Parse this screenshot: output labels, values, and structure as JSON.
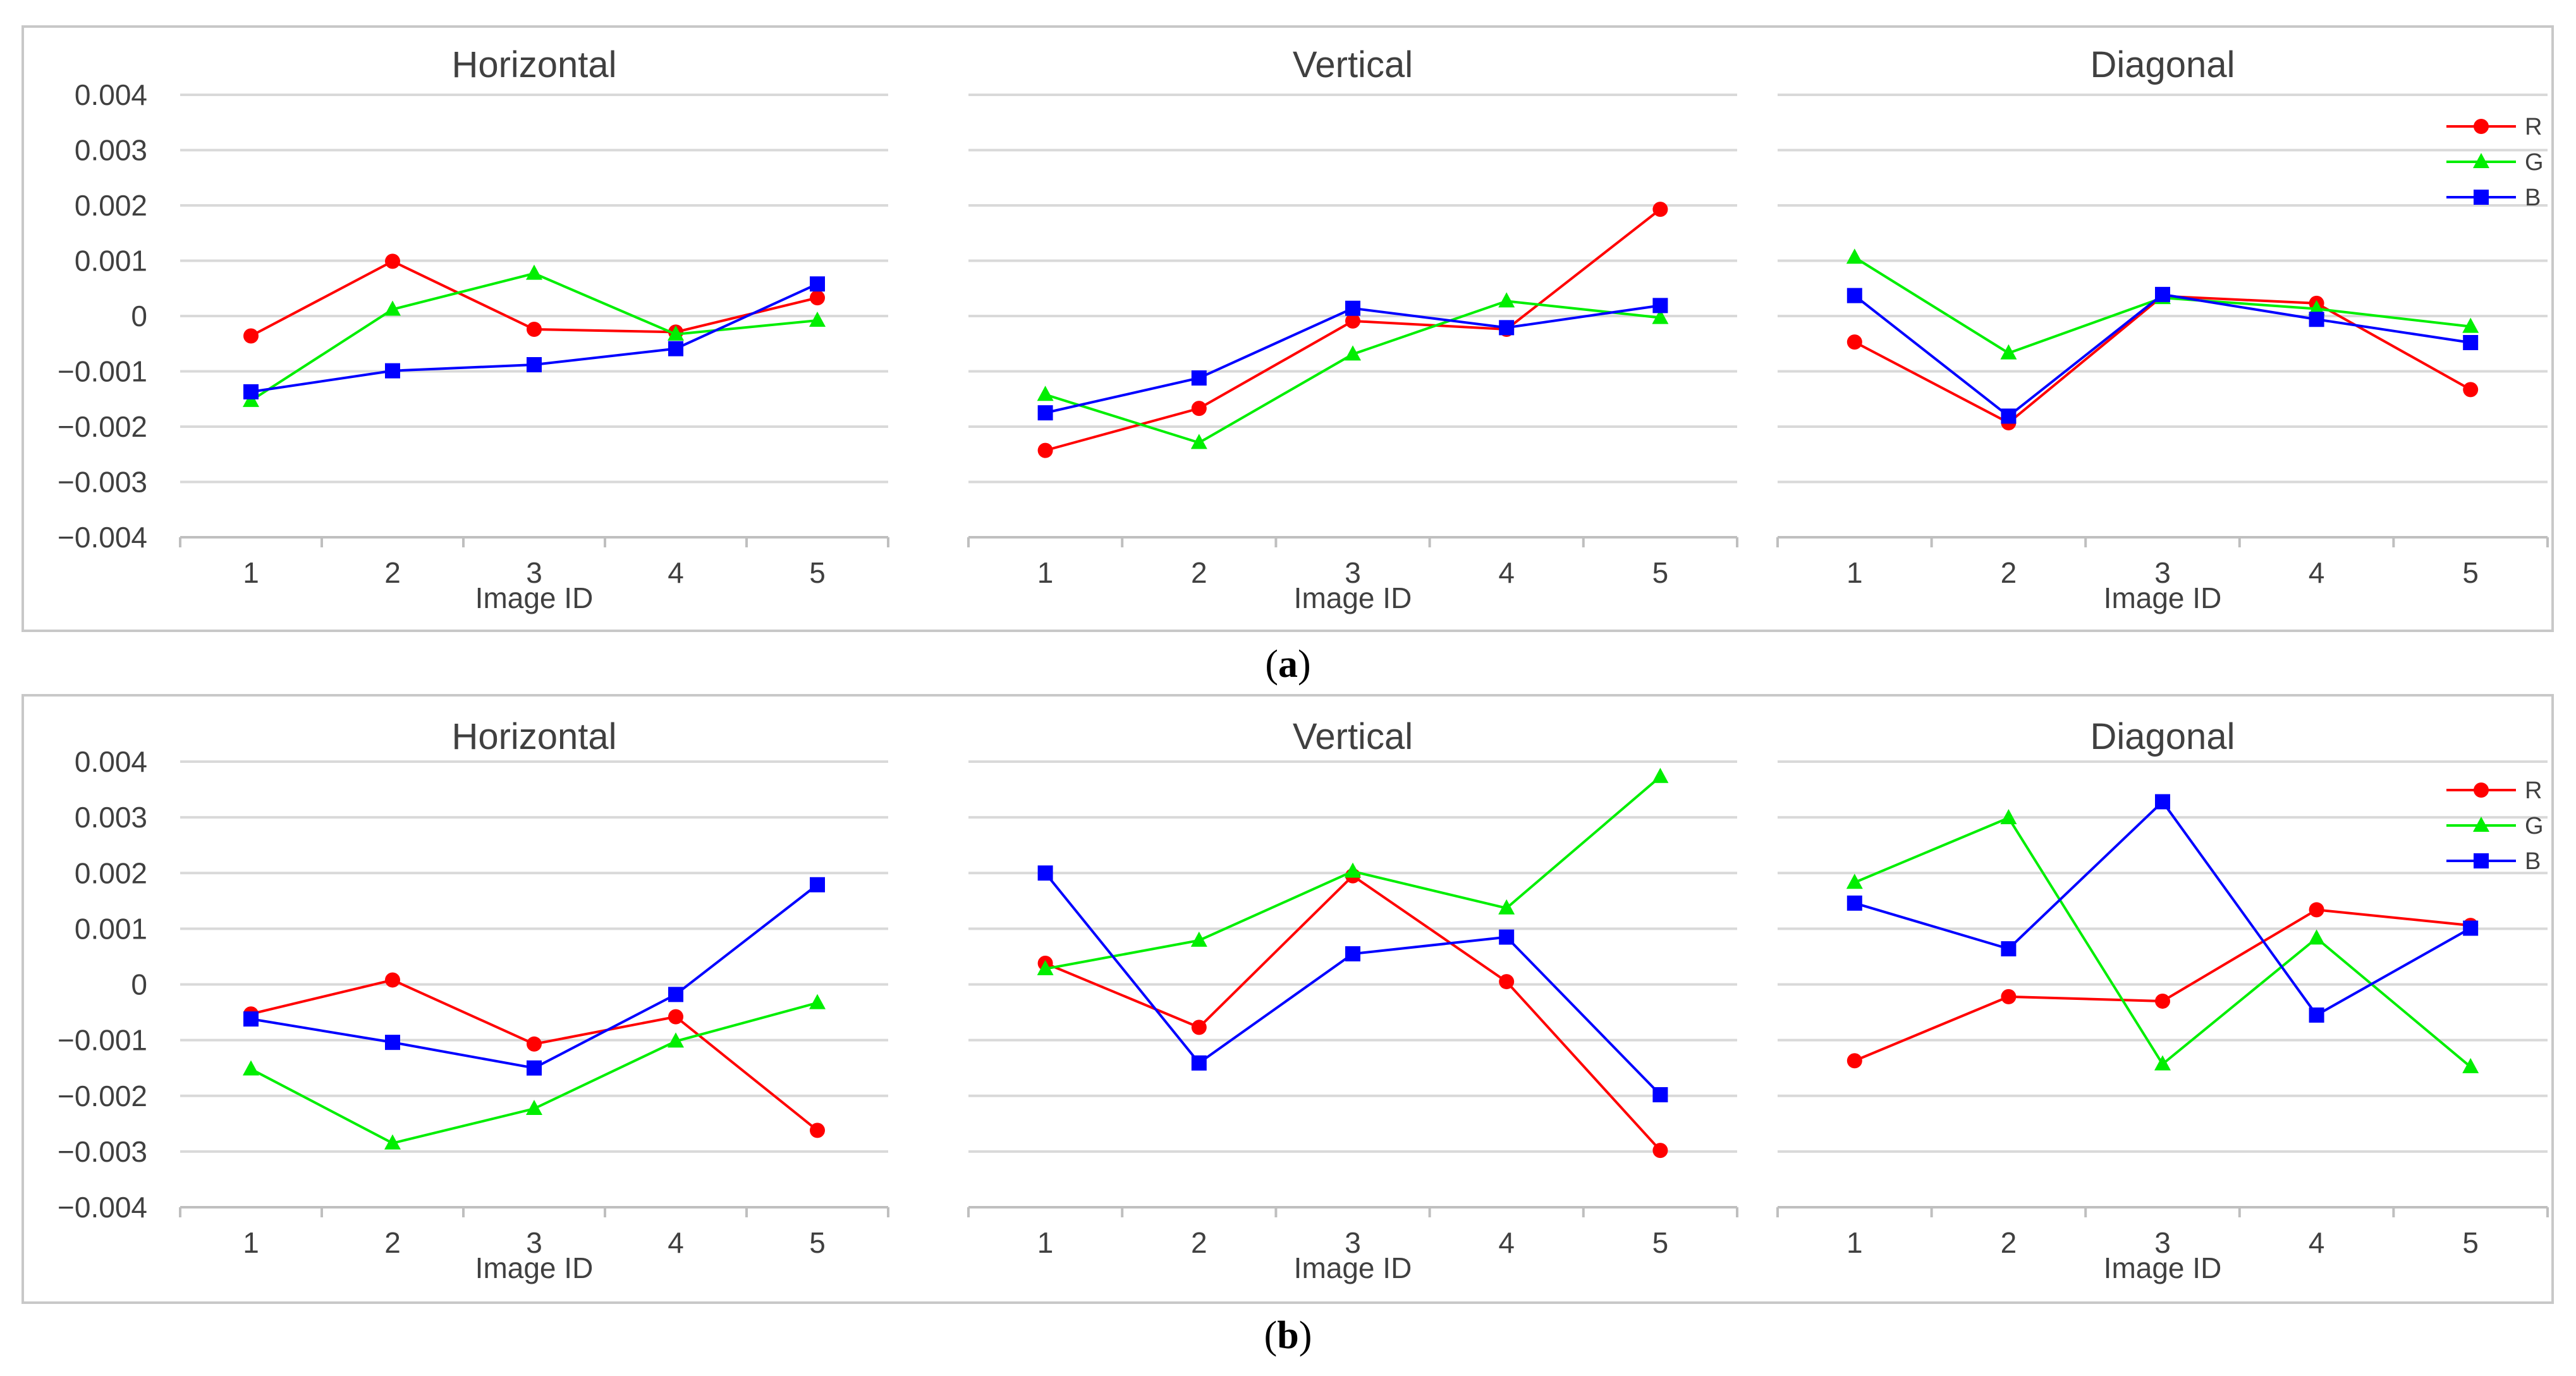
{
  "chart_data": [
    {
      "panel": "a",
      "type": "line",
      "title": "Horizontal",
      "xlabel": "Image ID",
      "ylabel": "",
      "categories": [
        "1",
        "2",
        "3",
        "4",
        "5"
      ],
      "ylim": [
        -0.004,
        0.004
      ],
      "yticks": [
        "0.004",
        "0.003",
        "0.002",
        "0.001",
        "0",
        "−0.001",
        "−0.002",
        "−0.003",
        "−0.004"
      ],
      "grid": true,
      "series": [
        {
          "name": "R",
          "values": [
            -0.00036,
            0.00099,
            -0.00024,
            -0.00029,
            0.00033
          ]
        },
        {
          "name": "G",
          "values": [
            -0.00153,
            0.00012,
            0.00077,
            -0.00033,
            -8e-05
          ]
        },
        {
          "name": "B",
          "values": [
            -0.00137,
            -0.00099,
            -0.00088,
            -0.00059,
            0.00058
          ]
        }
      ]
    },
    {
      "panel": "a",
      "type": "line",
      "title": "Vertical",
      "xlabel": "Image ID",
      "ylabel": "",
      "categories": [
        "1",
        "2",
        "3",
        "4",
        "5"
      ],
      "ylim": [
        -0.004,
        0.004
      ],
      "grid": true,
      "series": [
        {
          "name": "R",
          "values": [
            -0.00243,
            -0.00167,
            -9e-05,
            -0.00024,
            0.00193
          ]
        },
        {
          "name": "G",
          "values": [
            -0.00142,
            -0.00229,
            -0.00069,
            0.00027,
            -3e-05
          ]
        },
        {
          "name": "B",
          "values": [
            -0.00175,
            -0.00112,
            0.00014,
            -0.00021,
            0.00019
          ]
        }
      ]
    },
    {
      "panel": "a",
      "type": "line",
      "title": "Diagonal",
      "xlabel": "Image ID",
      "ylabel": "",
      "categories": [
        "1",
        "2",
        "3",
        "4",
        "5"
      ],
      "ylim": [
        -0.004,
        0.004
      ],
      "grid": true,
      "legend": "top-right",
      "series": [
        {
          "name": "R",
          "values": [
            -0.00047,
            -0.00193,
            0.00036,
            0.00023,
            -0.00133
          ]
        },
        {
          "name": "G",
          "values": [
            0.00106,
            -0.00067,
            0.00033,
            0.00013,
            -0.00019
          ]
        },
        {
          "name": "B",
          "values": [
            0.00037,
            -0.00181,
            0.00039,
            -6e-05,
            -0.00048
          ]
        }
      ]
    },
    {
      "panel": "b",
      "type": "line",
      "title": "Horizontal",
      "xlabel": "Image ID",
      "ylabel": "",
      "categories": [
        "1",
        "2",
        "3",
        "4",
        "5"
      ],
      "ylim": [
        -0.004,
        0.004
      ],
      "yticks": [
        "0.004",
        "0.003",
        "0.002",
        "0.001",
        "0",
        "−0.001",
        "−0.002",
        "−0.003",
        "−0.004"
      ],
      "grid": true,
      "series": [
        {
          "name": "R",
          "values": [
            -0.00053,
            8e-05,
            -0.00107,
            -0.00058,
            -0.00262
          ]
        },
        {
          "name": "G",
          "values": [
            -0.00152,
            -0.00285,
            -0.00223,
            -0.00102,
            -0.00033
          ]
        },
        {
          "name": "B",
          "values": [
            -0.00062,
            -0.00104,
            -0.0015,
            -0.00018,
            0.00179
          ]
        }
      ]
    },
    {
      "panel": "b",
      "type": "line",
      "title": "Vertical",
      "xlabel": "Image ID",
      "ylabel": "",
      "categories": [
        "1",
        "2",
        "3",
        "4",
        "5"
      ],
      "ylim": [
        -0.004,
        0.004
      ],
      "grid": true,
      "series": [
        {
          "name": "R",
          "values": [
            0.00038,
            -0.00077,
            0.00195,
            5e-05,
            -0.00298
          ]
        },
        {
          "name": "G",
          "values": [
            0.00028,
            0.00079,
            0.00203,
            0.00137,
            0.00373
          ]
        },
        {
          "name": "B",
          "values": [
            0.002,
            -0.00141,
            0.00055,
            0.00085,
            -0.00198
          ]
        }
      ]
    },
    {
      "panel": "b",
      "type": "line",
      "title": "Diagonal",
      "xlabel": "Image ID",
      "ylabel": "",
      "categories": [
        "1",
        "2",
        "3",
        "4",
        "5"
      ],
      "ylim": [
        -0.004,
        0.004
      ],
      "grid": true,
      "legend": "top-right",
      "series": [
        {
          "name": "R",
          "values": [
            -0.00137,
            -0.00022,
            -0.0003,
            0.00134,
            0.00106
          ]
        },
        {
          "name": "G",
          "values": [
            0.00183,
            0.00299,
            -0.00143,
            0.00083,
            -0.00148
          ]
        },
        {
          "name": "B",
          "values": [
            0.00146,
            0.00064,
            0.00328,
            -0.00055,
            0.00101
          ]
        }
      ]
    }
  ],
  "colors": {
    "R": "#ff0000",
    "G": "#00ee00",
    "B": "#0000ff",
    "grid": "#d9d9d9",
    "axis": "#bfbfbf"
  },
  "markers": {
    "R": "circle",
    "G": "triangle",
    "B": "square"
  },
  "captions": {
    "a_label": "a",
    "b_label": "b",
    "open": "(",
    "close": ")"
  }
}
